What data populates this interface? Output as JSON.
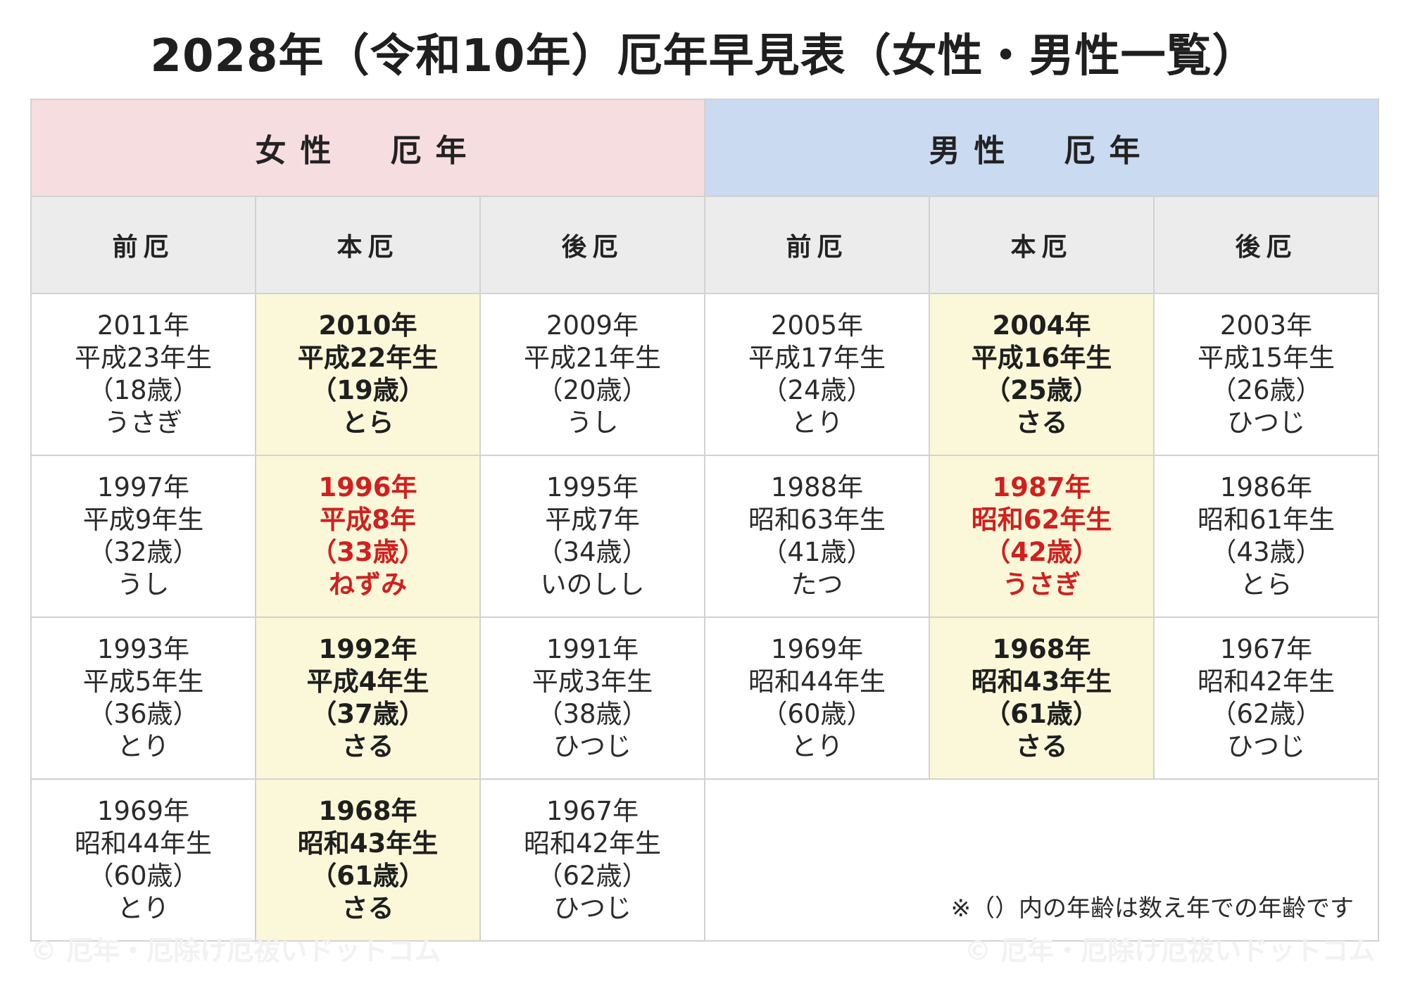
{
  "title": "2028年（令和10年）厄年早見表（女性・男性一覧）",
  "headers": {
    "women": "女性　厄年",
    "men": "男性　厄年",
    "phases": [
      "前厄",
      "本厄",
      "後厄",
      "前厄",
      "本厄",
      "後厄"
    ]
  },
  "rows": [
    {
      "women": [
        {
          "year": "2011年",
          "era": "平成23年生",
          "age": "（18歳）",
          "zodiac": "うさぎ"
        },
        {
          "year": "2010年",
          "era": "平成22年生",
          "age": "（19歳）",
          "zodiac": "とら"
        },
        {
          "year": "2009年",
          "era": "平成21年生",
          "age": "（20歳）",
          "zodiac": "うし"
        }
      ],
      "men": [
        {
          "year": "2005年",
          "era": "平成17年生",
          "age": "（24歳）",
          "zodiac": "とり"
        },
        {
          "year": "2004年",
          "era": "平成16年生",
          "age": "（25歳）",
          "zodiac": "さる"
        },
        {
          "year": "2003年",
          "era": "平成15年生",
          "age": "（26歳）",
          "zodiac": "ひつじ"
        }
      ]
    },
    {
      "women": [
        {
          "year": "1997年",
          "era": "平成9年生",
          "age": "（32歳）",
          "zodiac": "うし"
        },
        {
          "year": "1996年",
          "era": "平成8年",
          "age": "（33歳）",
          "zodiac": "ねずみ"
        },
        {
          "year": "1995年",
          "era": "平成7年",
          "age": "（34歳）",
          "zodiac": "いのしし"
        }
      ],
      "men": [
        {
          "year": "1988年",
          "era": "昭和63年生",
          "age": "（41歳）",
          "zodiac": "たつ"
        },
        {
          "year": "1987年",
          "era": "昭和62年生",
          "age": "（42歳）",
          "zodiac": "うさぎ"
        },
        {
          "year": "1986年",
          "era": "昭和61年生",
          "age": "（43歳）",
          "zodiac": "とら"
        }
      ]
    },
    {
      "women": [
        {
          "year": "1993年",
          "era": "平成5年生",
          "age": "（36歳）",
          "zodiac": "とり"
        },
        {
          "year": "1992年",
          "era": "平成4年生",
          "age": "（37歳）",
          "zodiac": "さる"
        },
        {
          "year": "1991年",
          "era": "平成3年生",
          "age": "（38歳）",
          "zodiac": "ひつじ"
        }
      ],
      "men": [
        {
          "year": "1969年",
          "era": "昭和44年生",
          "age": "（60歳）",
          "zodiac": "とり"
        },
        {
          "year": "1968年",
          "era": "昭和43年生",
          "age": "（61歳）",
          "zodiac": "さる"
        },
        {
          "year": "1967年",
          "era": "昭和42年生",
          "age": "（62歳）",
          "zodiac": "ひつじ"
        }
      ]
    },
    {
      "women": [
        {
          "year": "1969年",
          "era": "昭和44年生",
          "age": "（60歳）",
          "zodiac": "とり"
        },
        {
          "year": "1968年",
          "era": "昭和43年生",
          "age": "（61歳）",
          "zodiac": "さる"
        },
        {
          "year": "1967年",
          "era": "昭和42年生",
          "age": "（62歳）",
          "zodiac": "ひつじ"
        }
      ]
    }
  ],
  "note": "※（）内の年齢は数え年での年齢です",
  "watermark": "© 厄年・厄除け厄祓いドットコム",
  "colors": {
    "women_header": "#f6dde0",
    "men_header": "#c9daf1",
    "phase_header": "#ececec",
    "honyaku_cell": "#fbf8d9",
    "highlight_text": "#d0201f",
    "border": "#d2d2d2"
  }
}
